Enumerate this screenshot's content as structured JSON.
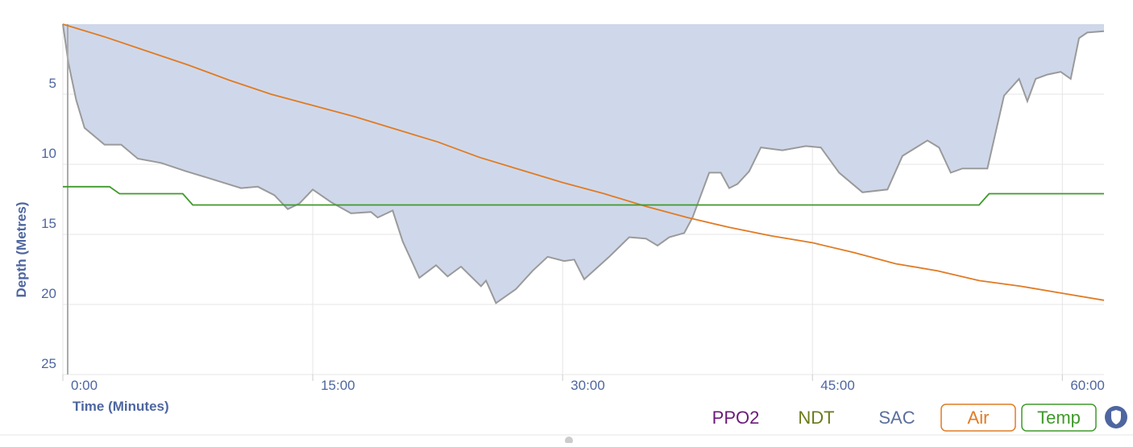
{
  "chart_data": {
    "type": "area",
    "xlabel": "Time (Minutes)",
    "ylabel": "Depth (Metres)",
    "x": [
      0,
      0.34,
      0.8,
      1.3,
      2.5,
      3.5,
      4.5,
      5.9,
      7.4,
      8.8,
      10.7,
      11.7,
      12.7,
      13.5,
      14.2,
      15,
      16.1,
      17.3,
      18.5,
      18.9,
      19.8,
      20.4,
      21.4,
      22.4,
      23.1,
      23.9,
      25.1,
      25.4,
      26.0,
      27.2,
      28.2,
      29.1,
      30.1,
      30.7,
      31.3,
      32.8,
      34.0,
      35.0,
      35.7,
      36.4,
      37.3,
      37.8,
      38.8,
      39.5,
      40.0,
      40.5,
      41.2,
      41.9,
      43.2,
      44.6,
      45.5,
      46.6,
      48.0,
      49.5,
      50.4,
      51.9,
      52.6,
      53.3,
      54.0,
      55.5,
      56.5,
      57.4,
      57.9,
      58.4,
      59.1,
      59.9,
      60.5,
      61.0,
      61.5,
      62.5
    ],
    "values": [
      0,
      2.8,
      5.4,
      7.4,
      8.6,
      8.6,
      9.6,
      9.9,
      10.5,
      11.0,
      11.7,
      11.6,
      12.2,
      13.2,
      12.8,
      11.8,
      12.7,
      13.5,
      13.4,
      13.8,
      13.3,
      15.5,
      18.1,
      17.2,
      18.0,
      17.3,
      18.7,
      18.3,
      19.9,
      18.9,
      17.6,
      16.6,
      16.9,
      16.8,
      18.2,
      16.6,
      15.2,
      15.3,
      15.8,
      15.2,
      14.9,
      13.8,
      10.6,
      10.6,
      11.7,
      11.4,
      10.5,
      8.8,
      9.0,
      8.7,
      8.8,
      10.6,
      12.0,
      11.8,
      9.4,
      8.3,
      8.8,
      10.6,
      10.3,
      10.3,
      5.1,
      3.9,
      5.5,
      3.9,
      3.6,
      3.4,
      3.9,
      1.0,
      0.6,
      0.5
    ],
    "color": "#cfd8ea",
    "xlim": [
      0,
      62.5
    ],
    "xticks": [
      {
        "value": 0,
        "label": "0:00"
      },
      {
        "value": 15,
        "label": "15:00"
      },
      {
        "value": 30,
        "label": "30:00"
      },
      {
        "value": 45,
        "label": "45:00"
      },
      {
        "value": 60,
        "label": "60:00"
      }
    ],
    "ylim": [
      0,
      25
    ],
    "yticks": [
      5,
      10,
      15,
      20,
      25
    ],
    "grid": true,
    "series": [
      {
        "name": "Air",
        "color": "#e07b24",
        "x": [
          0,
          2.5,
          5,
          7.5,
          10,
          12.5,
          15,
          17.5,
          20,
          22.5,
          25,
          27.5,
          30,
          32.5,
          35,
          37.5,
          40,
          42.5,
          45,
          47.5,
          50,
          52.5,
          55,
          57.5,
          60,
          62.5
        ],
        "values": [
          0,
          0.9,
          1.9,
          2.9,
          4.0,
          5.0,
          5.8,
          6.6,
          7.5,
          8.4,
          9.5,
          10.4,
          11.3,
          12.1,
          13.0,
          13.8,
          14.5,
          15.1,
          15.6,
          16.3,
          17.1,
          17.6,
          18.3,
          18.7,
          19.2,
          19.7
        ]
      },
      {
        "name": "Temp",
        "color": "#3f9a2a",
        "x": [
          0,
          2.8,
          3.4,
          7.2,
          7.8,
          55.0,
          55.6,
          62.5
        ],
        "values": [
          11.6,
          11.6,
          12.1,
          12.1,
          12.9,
          12.9,
          12.1,
          12.1
        ]
      }
    ],
    "toggles": [
      {
        "name": "PPO2",
        "color": "#6a1b7a"
      },
      {
        "name": "NDT",
        "color": "#6b7a1a"
      },
      {
        "name": "SAC",
        "color": "#5a6f9c"
      }
    ]
  }
}
